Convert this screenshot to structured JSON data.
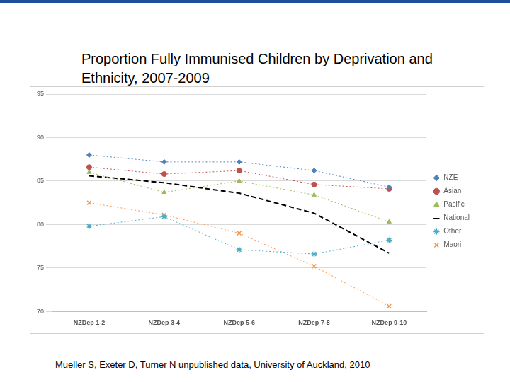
{
  "chart_data": {
    "type": "line",
    "title": "Proportion Fully Immunised Children by Deprivation and Ethnicity, 2007-2009",
    "annotations": [
      "Mueller S, Exeter D, Turner N unpublished data, University of Auckland, 2010"
    ],
    "categories": [
      "NZDep 1-2",
      "NZDep 3-4",
      "NZDep 5-6",
      "NZDep 7-8",
      "NZDep 9-10"
    ],
    "series": [
      {
        "name": "NZE",
        "color": "#4f81bd",
        "marker": "diamond",
        "line_style": "dotted",
        "values": [
          88,
          87.2,
          87.2,
          86.2,
          84.3
        ]
      },
      {
        "name": "Asian",
        "color": "#c0504d",
        "marker": "circle",
        "line_style": "dotted",
        "values": [
          86.6,
          85.8,
          86.2,
          84.6,
          84.1
        ]
      },
      {
        "name": "Pacific",
        "color": "#9bbb59",
        "marker": "triangle",
        "line_style": "dotted",
        "values": [
          86,
          83.7,
          85,
          83.4,
          80.3
        ]
      },
      {
        "name": "National",
        "color": "#000000",
        "marker": "none",
        "line_style": "dashed",
        "values": [
          85.6,
          84.8,
          83.6,
          81.3,
          76.7
        ]
      },
      {
        "name": "Other",
        "color": "#4bacc6",
        "marker": "star",
        "line_style": "dotted",
        "values": [
          79.8,
          80.9,
          77.1,
          76.6,
          78.2
        ]
      },
      {
        "name": "Maori",
        "color": "#f79646",
        "marker": "x",
        "line_style": "dotted",
        "values": [
          82.5,
          81.1,
          79,
          75.2,
          70.6
        ]
      }
    ],
    "ylim": [
      70,
      95
    ],
    "yticks": [
      70,
      75,
      80,
      85,
      90,
      95
    ],
    "grid": true,
    "legend": "right"
  }
}
